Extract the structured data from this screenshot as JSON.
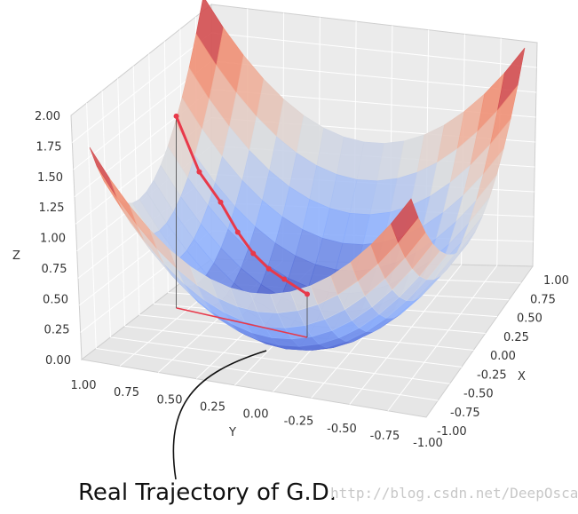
{
  "chart_data": {
    "type": "surface3d",
    "function": "z = x^2 + y^2",
    "zlabel": "Z",
    "xlabel": "X",
    "ylabel": "Y",
    "xlim": [
      -1.0,
      1.0
    ],
    "ylim": [
      -1.0,
      1.0
    ],
    "zlim": [
      0.0,
      2.0
    ],
    "z_ticks": [
      "0.00",
      "0.25",
      "0.50",
      "0.75",
      "1.00",
      "1.25",
      "1.50",
      "1.75",
      "2.00"
    ],
    "x_ticks": [
      "-1.00",
      "-0.75",
      "-0.50",
      "-0.25",
      "0.00",
      "0.25",
      "0.50",
      "0.75",
      "1.00"
    ],
    "y_ticks": [
      "1.00",
      "0.75",
      "0.50",
      "0.25",
      "0.00",
      "-0.25",
      "-0.50",
      "-0.75",
      "-1.00"
    ],
    "colormap": "coolwarm",
    "trajectory": {
      "color": "#e8394a",
      "points": [
        {
          "x": -0.1,
          "y": 0.85,
          "z": 1.6
        },
        {
          "x": -0.08,
          "y": 0.7,
          "z": 1.18
        },
        {
          "x": -0.06,
          "y": 0.56,
          "z": 0.97
        },
        {
          "x": -0.05,
          "y": 0.45,
          "z": 0.75
        },
        {
          "x": -0.04,
          "y": 0.35,
          "z": 0.6
        },
        {
          "x": -0.03,
          "y": 0.25,
          "z": 0.5
        },
        {
          "x": -0.02,
          "y": 0.15,
          "z": 0.44
        },
        {
          "x": 0.0,
          "y": 0.0,
          "z": 0.36
        }
      ]
    },
    "grid": true
  },
  "caption": "Real Trajectory of G.D.",
  "watermark": "http://blog.csdn.net/DeepOscar"
}
